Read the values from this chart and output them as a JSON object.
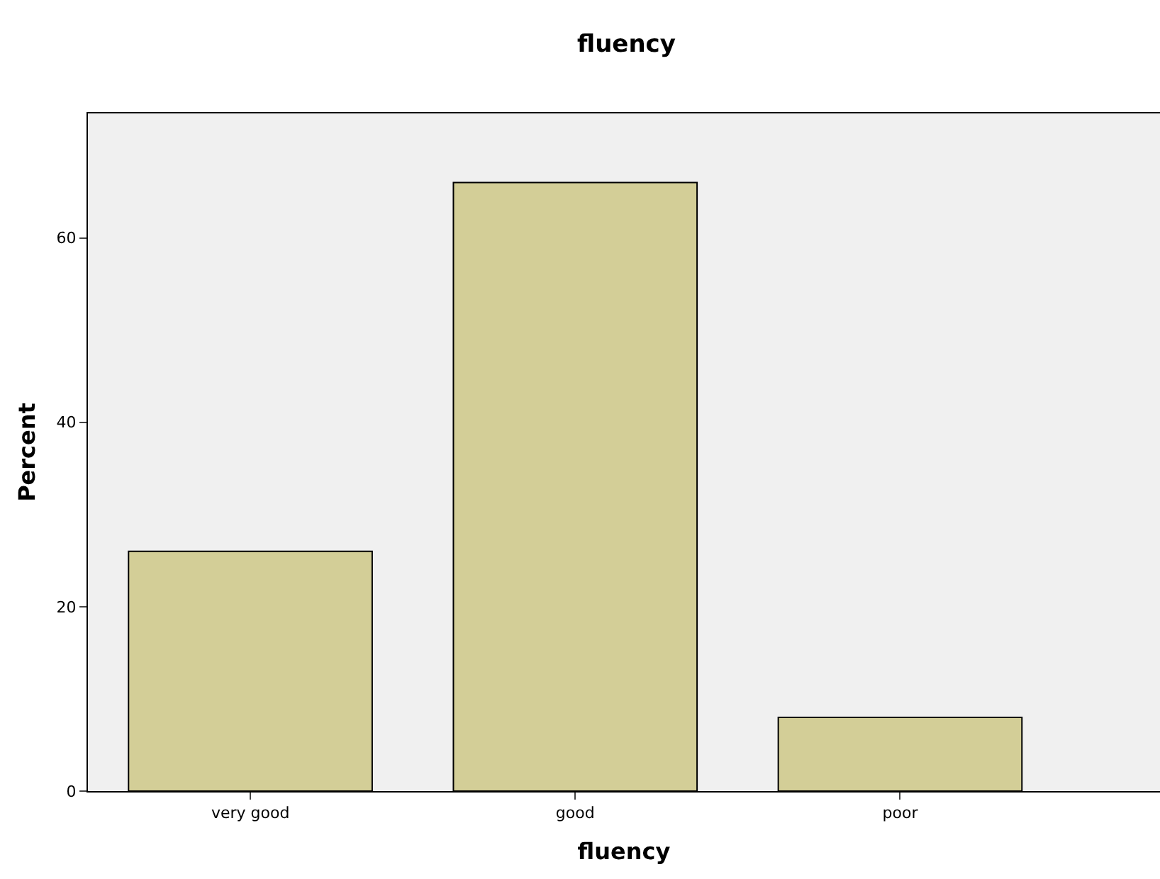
{
  "chart_data": {
    "type": "bar",
    "title": "fluency",
    "xlabel": "fluency",
    "ylabel": "Percent",
    "categories": [
      "very good",
      "good",
      "poor"
    ],
    "values": [
      26,
      66,
      8
    ],
    "color": "#d3ce97",
    "ylim": [
      0,
      73.5
    ],
    "yticks": [
      0,
      20,
      40,
      60
    ],
    "grid": false,
    "legend": false
  }
}
